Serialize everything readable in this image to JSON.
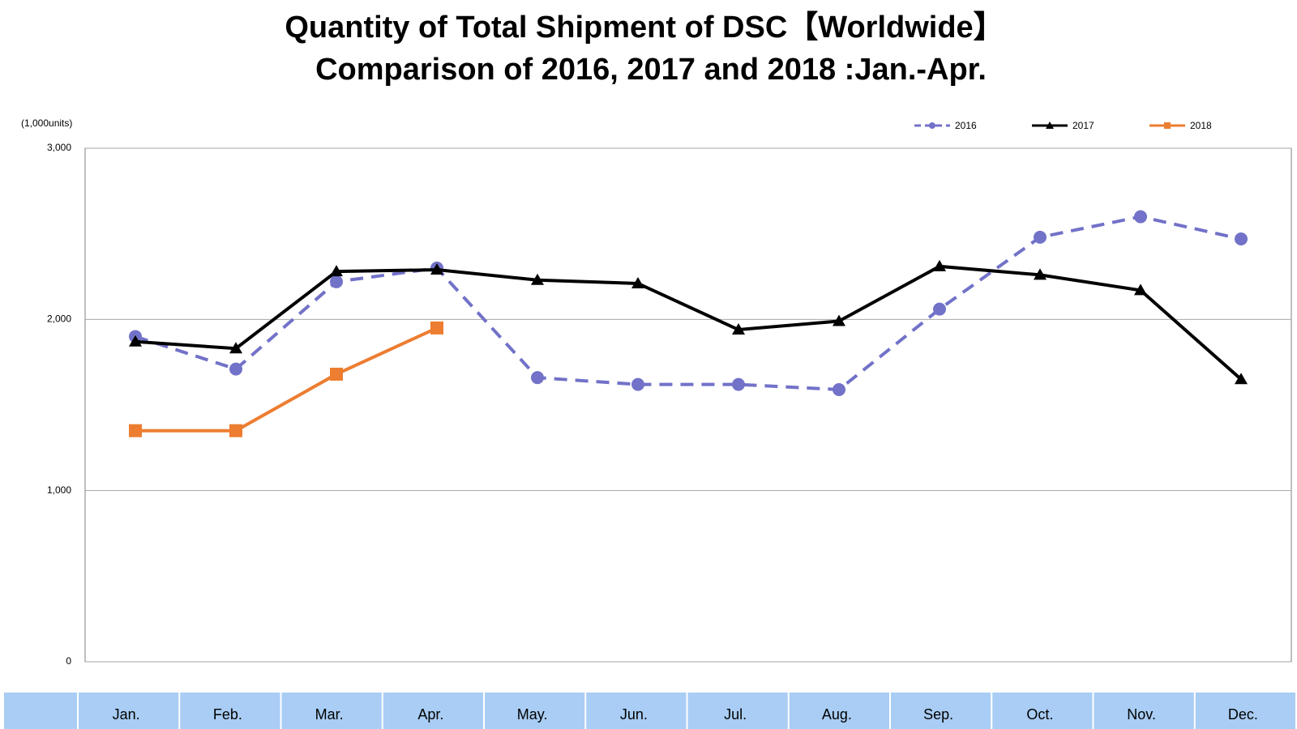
{
  "chart_data": {
    "type": "line",
    "title": [
      "Quantity of Total Shipment of DSC【Worldwide】",
      "Comparison of 2016, 2017 and 2018 :Jan.-Apr."
    ],
    "y_label": "(1,000units)",
    "categories": [
      "Jan.",
      "Feb.",
      "Mar.",
      "Apr.",
      "May.",
      "Jun.",
      "Jul.",
      "Aug.",
      "Sep.",
      "Oct.",
      "Nov.",
      "Dec."
    ],
    "series": [
      {
        "name": "2016",
        "color": "#7272c9",
        "line_style": "dashed",
        "marker": "circle",
        "values": [
          1900,
          1710,
          2220,
          2300,
          1660,
          1620,
          1620,
          1590,
          2060,
          2480,
          2600,
          2470
        ]
      },
      {
        "name": "2017",
        "color": "#000000",
        "line_style": "solid",
        "marker": "triangle",
        "values": [
          1870,
          1830,
          2280,
          2290,
          2230,
          2210,
          1940,
          1990,
          2310,
          2260,
          2170,
          1650
        ]
      },
      {
        "name": "2018",
        "color": "#ed7d31",
        "line_style": "solid",
        "marker": "square",
        "values": [
          1350,
          1350,
          1680,
          1950,
          null,
          null,
          null,
          null,
          null,
          null,
          null,
          null
        ]
      }
    ],
    "ylim": [
      0,
      3000
    ],
    "yticks": [
      0,
      {
        "value": 1000,
        "label": "1,000"
      },
      {
        "value": 2000,
        "label": "2,000"
      },
      {
        "value": 3000,
        "label": "3,000"
      }
    ],
    "grid": true,
    "legend": "top-right"
  }
}
